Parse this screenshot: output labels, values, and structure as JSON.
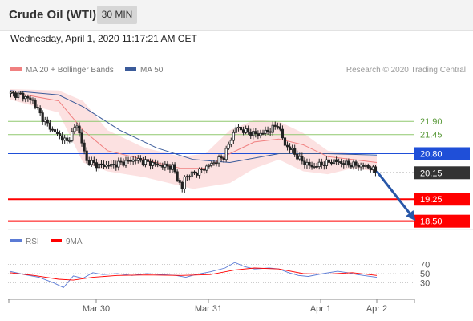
{
  "header": {
    "title": "Crude Oil (WTI)",
    "timeframe": "30 MIN"
  },
  "datetime": "Wednesday, April 1, 2020 11:17:21 AM CET",
  "legend": {
    "item1": "MA 20 + Bollinger Bands",
    "item2": "MA 50",
    "credit": "Research © 2020 Trading Central"
  },
  "rsi_legend": {
    "item1": "RSI",
    "item2": "9MA"
  },
  "colors": {
    "ma20": "#f08080",
    "bands": "#fbdada",
    "ma50": "#3b5b9a",
    "candle": "#222222",
    "support": "#ff0000",
    "pivot": "#1f4fd8",
    "resistance": "#8fc86f",
    "last": "#333333",
    "rsi": "#5b7bd5",
    "rsi_ma": "#ff0000",
    "arrow": "#2857a8"
  },
  "chart_data": [
    {
      "type": "candlestick",
      "x_ticks": [
        "Mar 30",
        "Mar 31",
        "Apr 1",
        "Apr 2"
      ],
      "levels": [
        {
          "value": 21.9,
          "label": "21.90",
          "kind": "resistance"
        },
        {
          "value": 21.45,
          "label": "21.45",
          "kind": "resistance"
        },
        {
          "value": 20.8,
          "label": "20.80",
          "kind": "pivot"
        },
        {
          "value": 20.15,
          "label": "20.15",
          "kind": "last"
        },
        {
          "value": 19.25,
          "label": "19.25",
          "kind": "support"
        },
        {
          "value": 18.5,
          "label": "18.50",
          "kind": "support"
        }
      ],
      "close_path": [
        [
          0,
          22.85
        ],
        [
          5,
          22.8
        ],
        [
          10,
          22.6
        ],
        [
          14,
          22.0
        ],
        [
          18,
          21.6
        ],
        [
          24,
          21.2
        ],
        [
          28,
          21.8
        ],
        [
          32,
          20.55
        ],
        [
          37,
          20.4
        ],
        [
          42,
          20.4
        ],
        [
          47,
          20.5
        ],
        [
          52,
          20.6
        ],
        [
          57,
          20.5
        ],
        [
          62,
          20.4
        ],
        [
          67,
          20.35
        ],
        [
          71,
          19.6
        ],
        [
          72,
          20.0
        ],
        [
          78,
          20.2
        ],
        [
          83,
          20.45
        ],
        [
          88,
          20.7
        ],
        [
          93,
          21.7
        ],
        [
          97,
          21.55
        ],
        [
          102,
          21.45
        ],
        [
          107,
          21.6
        ],
        [
          110,
          21.8
        ],
        [
          113,
          21.1
        ],
        [
          116,
          20.9
        ],
        [
          119,
          20.6
        ],
        [
          124,
          20.35
        ],
        [
          128,
          20.45
        ],
        [
          133,
          20.55
        ],
        [
          138,
          20.45
        ],
        [
          143,
          20.4
        ],
        [
          147,
          20.35
        ],
        [
          150,
          20.2
        ]
      ],
      "ma20_path": [
        [
          0,
          22.9
        ],
        [
          20,
          22.6
        ],
        [
          30,
          21.6
        ],
        [
          40,
          20.9
        ],
        [
          55,
          20.6
        ],
        [
          70,
          20.3
        ],
        [
          80,
          20.3
        ],
        [
          90,
          20.8
        ],
        [
          100,
          21.2
        ],
        [
          110,
          21.3
        ],
        [
          120,
          21.1
        ],
        [
          130,
          20.7
        ],
        [
          140,
          20.6
        ],
        [
          150,
          20.5
        ]
      ],
      "bands_upper": [
        [
          0,
          23.0
        ],
        [
          20,
          22.95
        ],
        [
          30,
          22.6
        ],
        [
          40,
          21.6
        ],
        [
          55,
          21.0
        ],
        [
          70,
          20.7
        ],
        [
          80,
          20.8
        ],
        [
          90,
          21.6
        ],
        [
          100,
          21.95
        ],
        [
          110,
          21.9
        ],
        [
          120,
          21.5
        ],
        [
          130,
          20.9
        ],
        [
          140,
          20.8
        ],
        [
          150,
          20.7
        ]
      ],
      "bands_lower": [
        [
          0,
          22.65
        ],
        [
          20,
          22.2
        ],
        [
          30,
          20.5
        ],
        [
          40,
          20.2
        ],
        [
          55,
          20.0
        ],
        [
          70,
          19.7
        ],
        [
          75,
          19.6
        ],
        [
          90,
          19.8
        ],
        [
          100,
          20.3
        ],
        [
          110,
          20.6
        ],
        [
          120,
          20.2
        ],
        [
          130,
          20.1
        ],
        [
          140,
          20.3
        ],
        [
          150,
          20.2
        ]
      ],
      "ma50_path": [
        [
          0,
          22.95
        ],
        [
          20,
          22.8
        ],
        [
          30,
          22.4
        ],
        [
          45,
          21.6
        ],
        [
          60,
          21.0
        ],
        [
          75,
          20.6
        ],
        [
          90,
          20.5
        ],
        [
          100,
          20.65
        ],
        [
          110,
          20.8
        ],
        [
          130,
          20.8
        ],
        [
          150,
          20.75
        ]
      ],
      "forecast_arrow": {
        "from": [
          150,
          20.2
        ],
        "to": [
          165,
          18.6
        ]
      },
      "y_range": [
        18.3,
        23.3
      ]
    },
    {
      "type": "line",
      "name": "RSI",
      "y_ticks": [
        70,
        50,
        30
      ],
      "y_range": [
        0,
        100
      ],
      "rsi_path": [
        [
          0,
          55
        ],
        [
          6,
          48
        ],
        [
          12,
          42
        ],
        [
          18,
          30
        ],
        [
          22,
          20
        ],
        [
          26,
          45
        ],
        [
          30,
          40
        ],
        [
          34,
          52
        ],
        [
          38,
          48
        ],
        [
          44,
          50
        ],
        [
          50,
          46
        ],
        [
          56,
          50
        ],
        [
          62,
          48
        ],
        [
          68,
          46
        ],
        [
          72,
          42
        ],
        [
          76,
          48
        ],
        [
          82,
          54
        ],
        [
          88,
          62
        ],
        [
          92,
          74
        ],
        [
          96,
          65
        ],
        [
          100,
          60
        ],
        [
          106,
          62
        ],
        [
          110,
          60
        ],
        [
          114,
          52
        ],
        [
          118,
          46
        ],
        [
          122,
          44
        ],
        [
          128,
          50
        ],
        [
          134,
          55
        ],
        [
          138,
          52
        ],
        [
          142,
          48
        ],
        [
          146,
          45
        ],
        [
          150,
          42
        ]
      ],
      "rsi_ma_path": [
        [
          0,
          52
        ],
        [
          10,
          46
        ],
        [
          20,
          38
        ],
        [
          26,
          36
        ],
        [
          34,
          42
        ],
        [
          44,
          46
        ],
        [
          56,
          47
        ],
        [
          70,
          46
        ],
        [
          82,
          48
        ],
        [
          92,
          58
        ],
        [
          100,
          62
        ],
        [
          110,
          60
        ],
        [
          120,
          50
        ],
        [
          130,
          49
        ],
        [
          140,
          52
        ],
        [
          150,
          46
        ]
      ]
    }
  ]
}
